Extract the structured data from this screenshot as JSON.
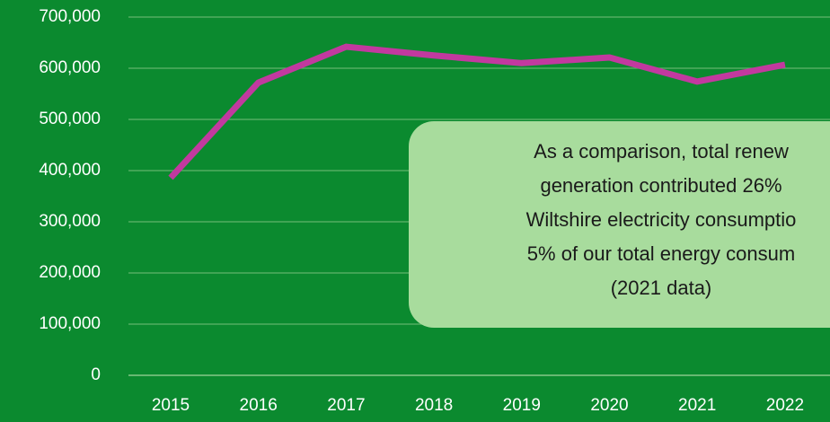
{
  "chart_data": {
    "type": "line",
    "categories": [
      "2015",
      "2016",
      "2017",
      "2018",
      "2019",
      "2020",
      "2021",
      "2022"
    ],
    "series": [
      {
        "color": "#c2399f",
        "values": [
          386000,
          572000,
          642000,
          625000,
          610000,
          621000,
          574000,
          607000
        ]
      }
    ],
    "ylim": [
      0,
      700000
    ],
    "yticks": [
      0,
      {
        "value": 100000,
        "label": "100,000"
      },
      {
        "value": 200000,
        "label": "200,000"
      },
      {
        "value": 300000,
        "label": "300,000"
      },
      {
        "value": 400000,
        "label": "400,000"
      },
      {
        "value": 500000,
        "label": "500,000"
      },
      {
        "value": 600000,
        "label": "600,000"
      },
      {
        "value": 700000,
        "label": "700,000"
      }
    ],
    "grid": true,
    "background": "#0b8a2f",
    "annotation": {
      "lines": [
        "As a comparison, total renew",
        "generation contributed 26%",
        "Wiltshire electricity consumptio",
        "5% of our total energy consum",
        "(2021 data)"
      ]
    }
  }
}
